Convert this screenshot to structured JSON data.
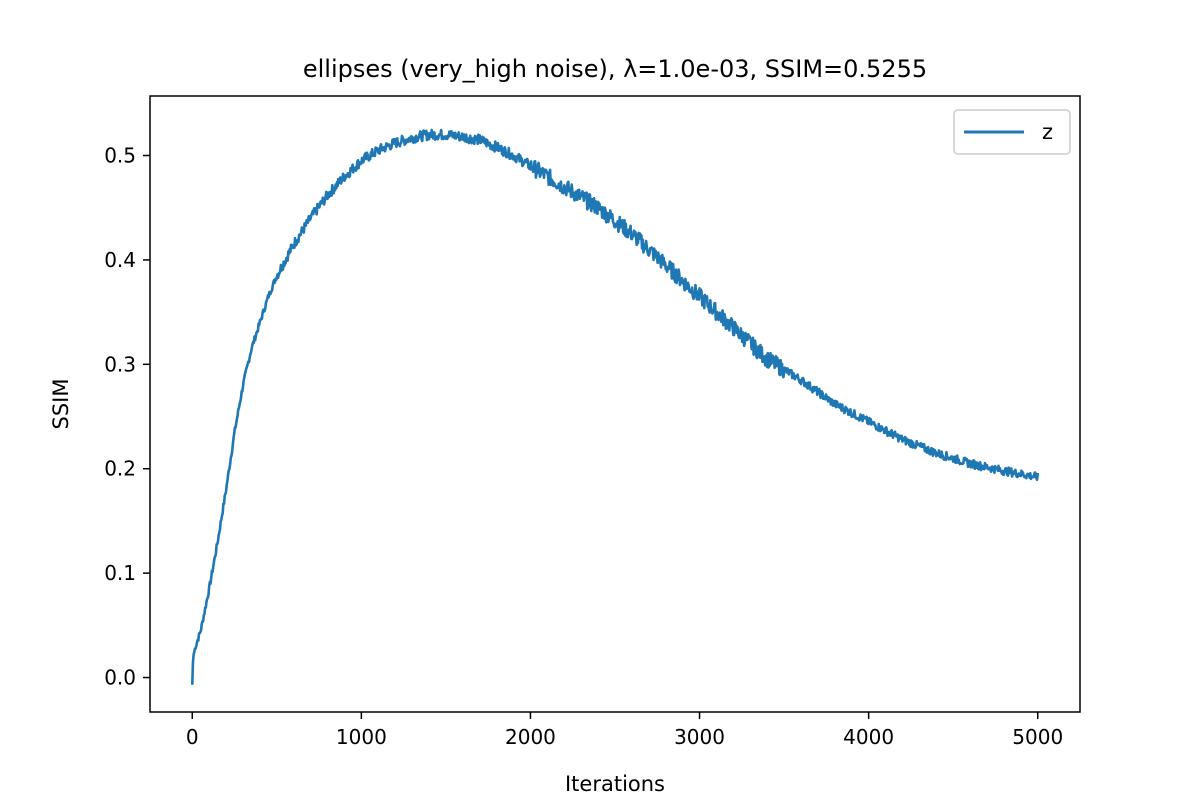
{
  "chart_data": {
    "type": "line",
    "title": "ellipses (very_high noise), λ=1.0e-03, SSIM=0.5255",
    "xlabel": "Iterations",
    "ylabel": "SSIM",
    "xlim": [
      -250,
      5250
    ],
    "ylim": [
      -0.033,
      0.557
    ],
    "xticks": [
      0,
      1000,
      2000,
      3000,
      4000,
      5000
    ],
    "xtick_labels": [
      "0",
      "1000",
      "2000",
      "3000",
      "4000",
      "5000"
    ],
    "yticks": [
      0.0,
      0.1,
      0.2,
      0.3,
      0.4,
      0.5
    ],
    "ytick_labels": [
      "0.0",
      "0.1",
      "0.2",
      "0.3",
      "0.4",
      "0.5"
    ],
    "grid": false,
    "legend": {
      "position": "top-right",
      "entries": [
        "z"
      ]
    },
    "series": [
      {
        "name": "z",
        "color": "#1f77b4",
        "x": [
          0,
          5,
          20,
          50,
          100,
          150,
          200,
          250,
          300,
          350,
          400,
          450,
          500,
          550,
          600,
          700,
          800,
          900,
          1000,
          1100,
          1200,
          1300,
          1400,
          1500,
          1600,
          1700,
          1800,
          1900,
          2000,
          2200,
          2400,
          2600,
          2800,
          3000,
          3200,
          3400,
          3600,
          3800,
          4000,
          4200,
          4400,
          4600,
          4800,
          5000
        ],
        "y": [
          -0.007,
          0.02,
          0.03,
          0.045,
          0.085,
          0.13,
          0.18,
          0.235,
          0.28,
          0.315,
          0.34,
          0.365,
          0.385,
          0.4,
          0.415,
          0.44,
          0.462,
          0.48,
          0.495,
          0.505,
          0.512,
          0.517,
          0.52,
          0.52,
          0.518,
          0.515,
          0.508,
          0.5,
          0.49,
          0.47,
          0.45,
          0.425,
          0.395,
          0.365,
          0.335,
          0.305,
          0.285,
          0.262,
          0.245,
          0.228,
          0.215,
          0.205,
          0.198,
          0.192
        ]
      }
    ]
  }
}
